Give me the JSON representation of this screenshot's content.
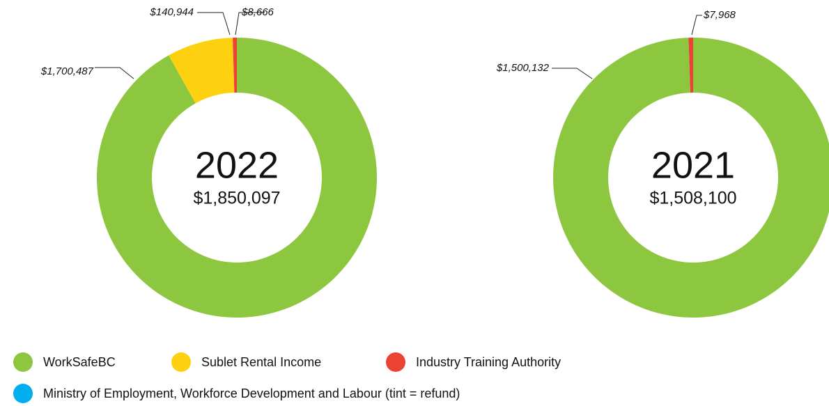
{
  "chart_data": [
    {
      "type": "pie",
      "donut": true,
      "title": "2022",
      "total": 1850097,
      "total_label": "$1,850,097",
      "values": [
        1700487,
        140944,
        8666
      ],
      "value_labels": [
        "$1,700,487",
        "$140,944",
        "$8,666"
      ],
      "colors": [
        "#8dc63f",
        "#fdd10f",
        "#ee4136"
      ]
    },
    {
      "type": "pie",
      "donut": true,
      "title": "2021",
      "total": 1508100,
      "total_label": "$1,508,100",
      "values": [
        1500132,
        7968
      ],
      "value_labels": [
        "$1,500,132",
        "$7,968"
      ],
      "colors": [
        "#8dc63f",
        "#ee4136"
      ]
    }
  ],
  "legend": [
    {
      "name": "WorkSafeBC",
      "color": "#8dc63f"
    },
    {
      "name": "Sublet Rental Income",
      "color": "#fdd10f"
    },
    {
      "name": "Industry Training Authority",
      "color": "#ee4136"
    },
    {
      "name": "Ministry of Employment, Workforce Development and Labour (tint = refund)",
      "color": "#00aeef"
    }
  ]
}
